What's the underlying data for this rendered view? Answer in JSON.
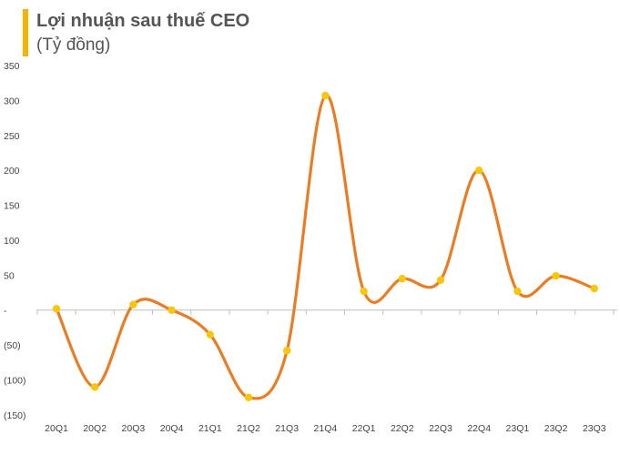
{
  "header": {
    "title": "Lợi nhuận sau thuế CEO",
    "subtitle": "(Tỷ đồng)"
  },
  "colors": {
    "accent": "#f5b400",
    "line": "#ea7d23",
    "marker": "#f8c60a",
    "axis": "#bfbfbf"
  },
  "chart_data": {
    "type": "line",
    "title": "Lợi nhuận sau thuế CEO",
    "subtitle": "(Tỷ đồng)",
    "categories": [
      "20Q1",
      "20Q2",
      "20Q3",
      "20Q4",
      "21Q1",
      "21Q2",
      "21Q3",
      "21Q4",
      "22Q1",
      "22Q2",
      "22Q3",
      "22Q4",
      "23Q1",
      "23Q2",
      "23Q3"
    ],
    "values": [
      2,
      -110,
      8,
      0,
      -35,
      -125,
      -58,
      307,
      27,
      45,
      43,
      200,
      27,
      49,
      31
    ],
    "ylim": [
      -150,
      350
    ],
    "yticks": [
      350,
      300,
      250,
      200,
      150,
      100,
      50,
      0,
      -50,
      -100,
      -150
    ],
    "ytick_labels": [
      "350",
      "300",
      "250",
      "200",
      "150",
      "100",
      "50",
      "-",
      "(50)",
      "(100)",
      "(150)"
    ],
    "grid": false,
    "smooth": true,
    "markers": true
  }
}
